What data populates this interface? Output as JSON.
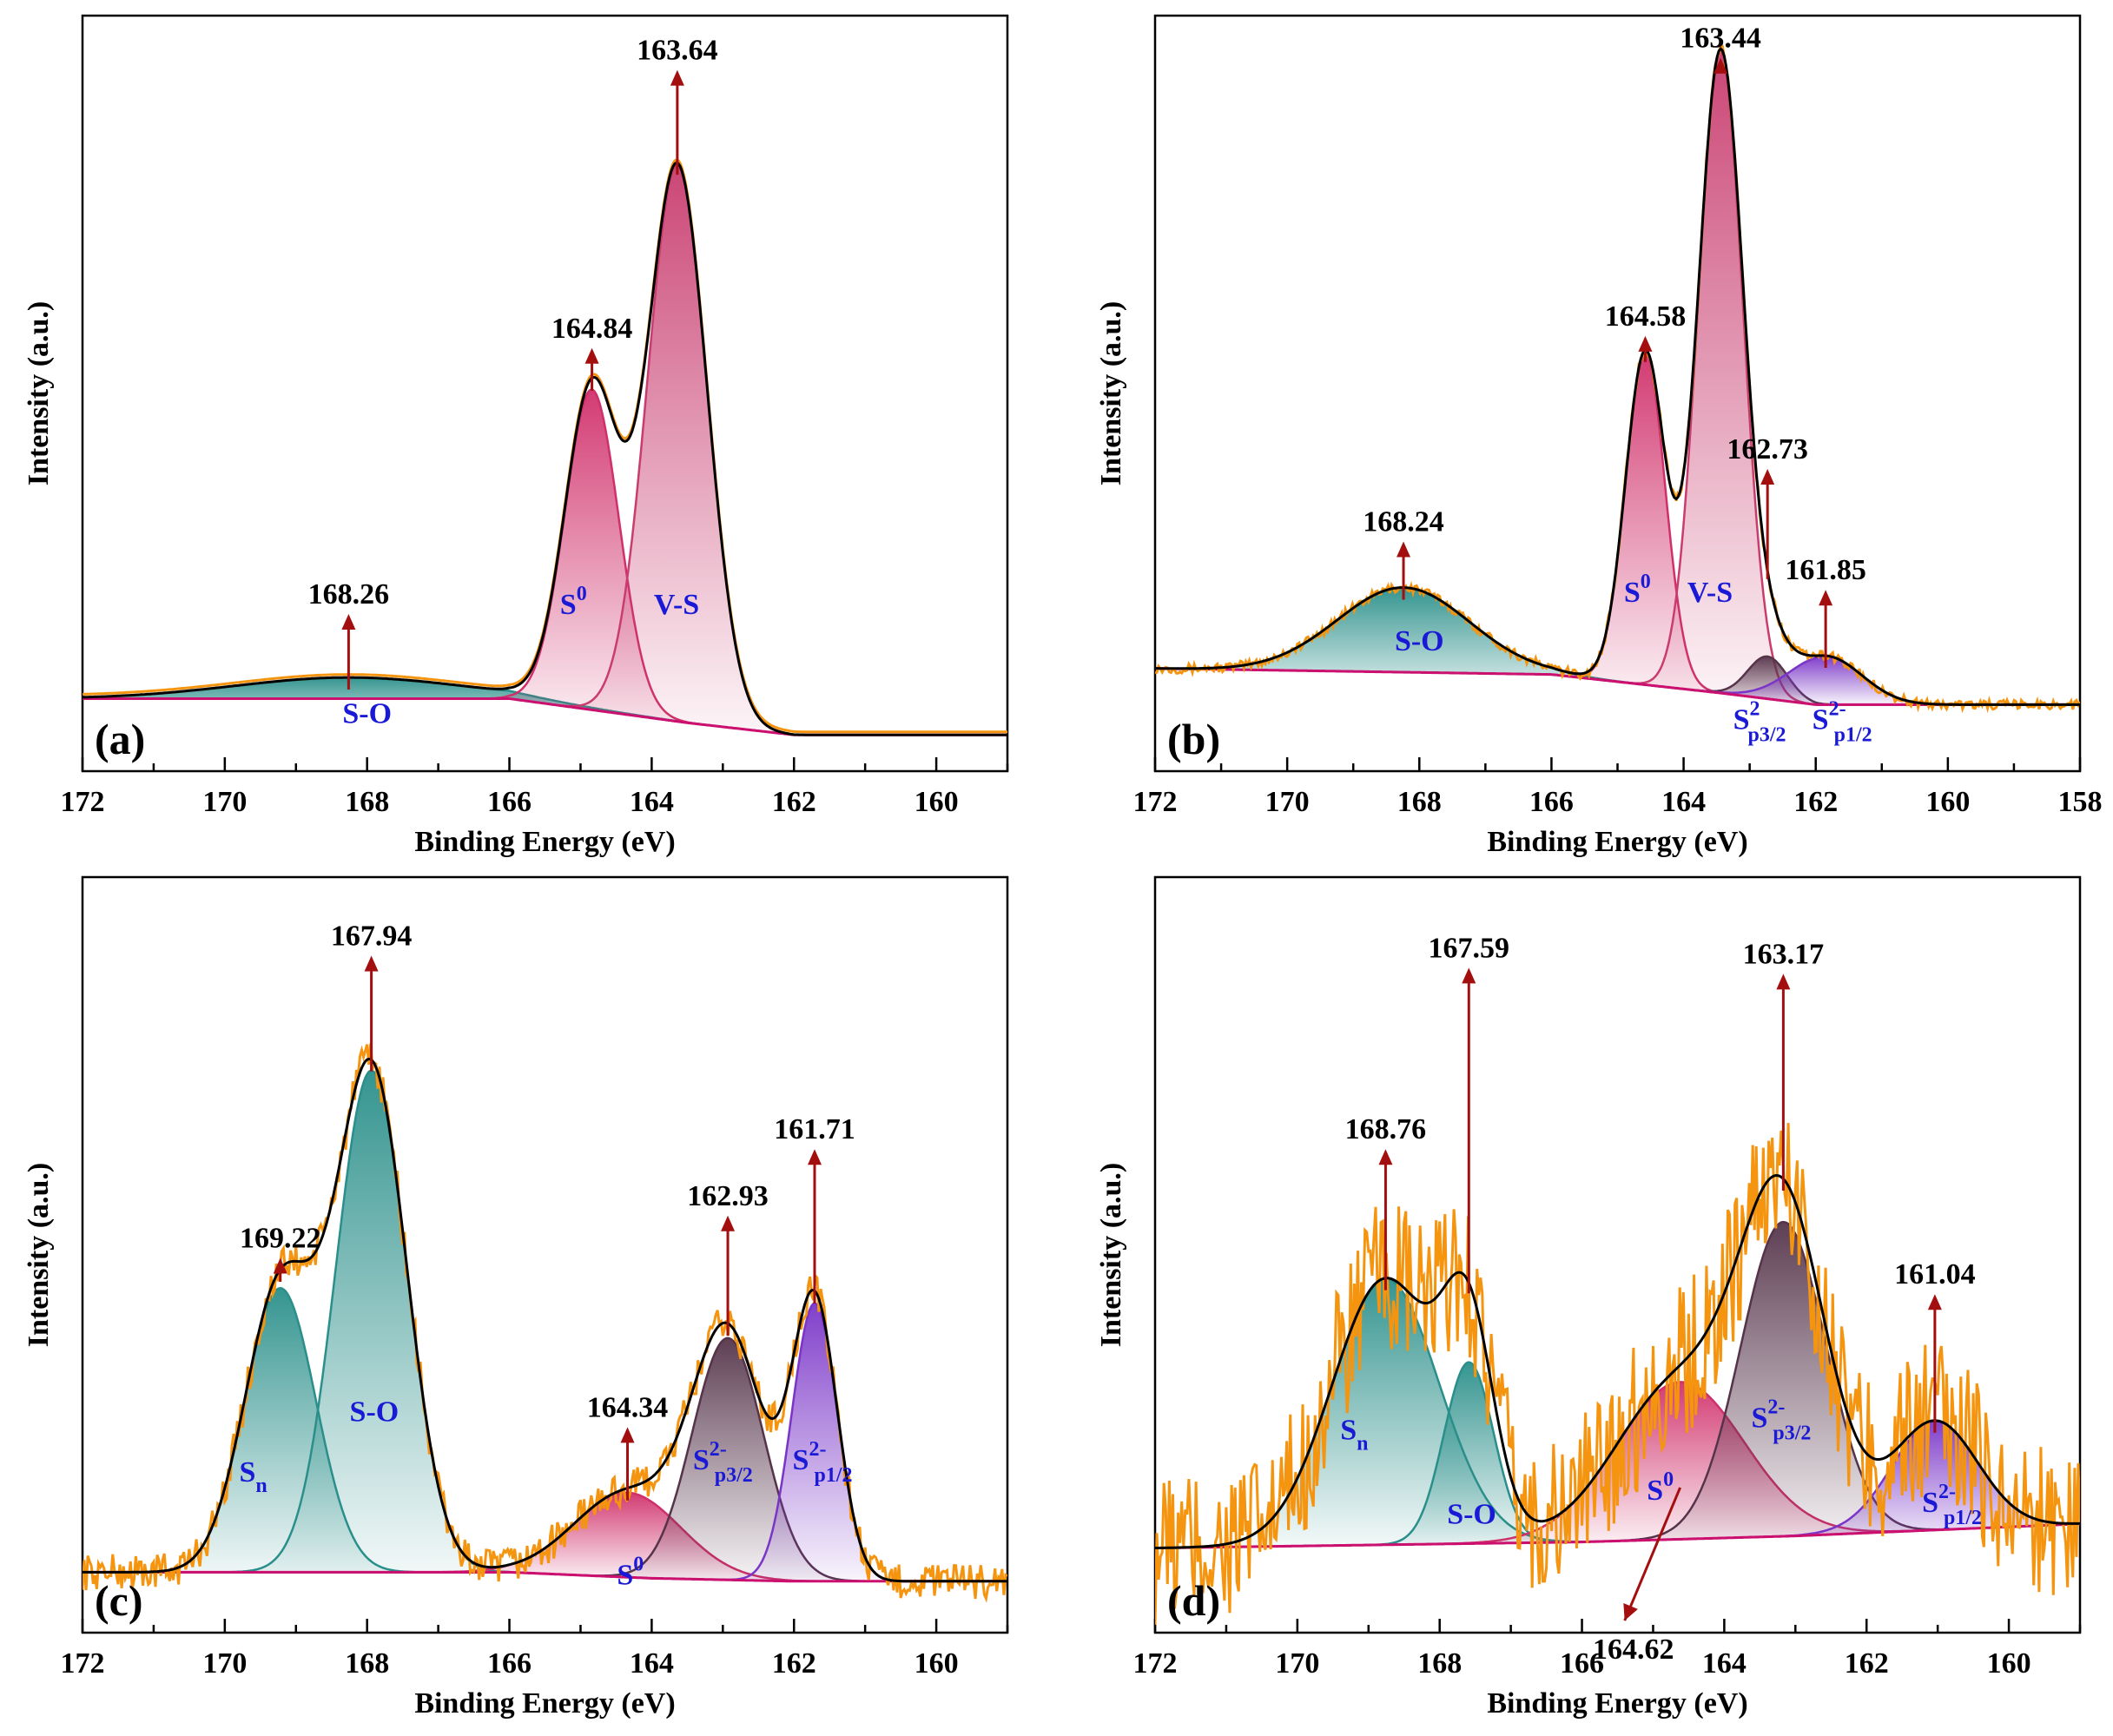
{
  "colors": {
    "raw": "#f5940f",
    "envelope": "#000000",
    "baseline": "#cc1070",
    "arrow": "#a30f0f",
    "label": "#1a1ad6",
    "so": "#2a8f8a",
    "s0": "#d0306a",
    "vs": "#c83c6e",
    "sp32": "#55344a",
    "sp12": "#7a35c8",
    "sn": "#2a8f8a"
  },
  "chart_data": [
    {
      "panel": "(a)",
      "type": "line",
      "xlabel": "Binding Energy (eV)",
      "ylabel": "Intensity (a.u.)",
      "xlim": [
        172,
        159
      ],
      "ylim": [
        0,
        1.25
      ],
      "xticks": [
        "172",
        "170",
        "168",
        "166",
        "164",
        "162",
        "160"
      ],
      "baseline": [
        [
          172,
          0.12
        ],
        [
          166,
          0.12
        ],
        [
          163.5,
          0.08
        ],
        [
          162,
          0.06
        ],
        [
          159,
          0.06
        ]
      ],
      "noise": 0.0,
      "components": [
        {
          "name": "S-O",
          "label_main": "S-O",
          "label_sup": "",
          "label_sub": "",
          "center": 168.26,
          "height": 0.035,
          "width": 1.6,
          "color": "so",
          "label_pos": [
            168.0,
            0.08
          ]
        },
        {
          "name": "S0",
          "label_main": "S",
          "label_sup": "0",
          "label_sub": "",
          "center": 164.84,
          "height": 0.53,
          "width": 0.38,
          "color": "s0",
          "label_pos": [
            165.1,
            0.26
          ]
        },
        {
          "name": "V-S",
          "label_main": "V-S",
          "label_sup": "",
          "label_sub": "",
          "center": 163.64,
          "height": 0.92,
          "width": 0.42,
          "color": "vs",
          "label_pos": [
            163.65,
            0.26
          ]
        }
      ],
      "peaks": [
        {
          "value": "163.64",
          "x": 163.64,
          "arrow_top": 1.16
        },
        {
          "value": "164.84",
          "x": 164.84,
          "arrow_top": 0.7
        },
        {
          "value": "168.26",
          "x": 168.26,
          "arrow_top": 0.26
        }
      ]
    },
    {
      "panel": "(b)",
      "type": "line",
      "xlabel": "Binding Energy (eV)",
      "ylabel": "Intensity (a.u.)",
      "xlim": [
        172,
        158
      ],
      "ylim": [
        0,
        1.25
      ],
      "xticks": [
        "172",
        "170",
        "168",
        "166",
        "164",
        "162",
        "160",
        "158"
      ],
      "baseline": [
        [
          172,
          0.17
        ],
        [
          166,
          0.16
        ],
        [
          163.5,
          0.13
        ],
        [
          162,
          0.11
        ],
        [
          158,
          0.11
        ]
      ],
      "noise": 0.008,
      "components": [
        {
          "name": "S-O",
          "label_main": "S-O",
          "label_sup": "",
          "label_sub": "",
          "center": 168.24,
          "height": 0.14,
          "width": 1.0,
          "color": "so",
          "label_pos": [
            168.0,
            0.2
          ]
        },
        {
          "name": "S0",
          "label_main": "S",
          "label_sup": "0",
          "label_sub": "",
          "center": 164.58,
          "height": 0.55,
          "width": 0.3,
          "color": "s0",
          "label_pos": [
            164.7,
            0.28
          ]
        },
        {
          "name": "V-S",
          "label_main": "V-S",
          "label_sup": "",
          "label_sub": "",
          "center": 163.44,
          "height": 1.06,
          "width": 0.34,
          "color": "vs",
          "label_pos": [
            163.6,
            0.28
          ]
        },
        {
          "name": "S2- p3/2",
          "label_main": "S",
          "label_sup": "2",
          "label_sub": "p3/2",
          "center": 162.73,
          "height": 0.07,
          "width": 0.3,
          "color": "sp32",
          "label_pos": [
            162.85,
            0.07
          ]
        },
        {
          "name": "S2- p1/2",
          "label_main": "S",
          "label_sup": "2-",
          "label_sub": "p1/2",
          "center": 161.85,
          "height": 0.08,
          "width": 0.55,
          "color": "sp12",
          "label_pos": [
            161.6,
            0.07
          ]
        }
      ],
      "peaks": [
        {
          "value": "163.44",
          "x": 163.44,
          "arrow_top": 1.18
        },
        {
          "value": "164.58",
          "x": 164.58,
          "arrow_top": 0.72
        },
        {
          "value": "168.24",
          "x": 168.24,
          "arrow_top": 0.38
        },
        {
          "value": "162.73",
          "x": 162.73,
          "arrow_top": 0.5
        },
        {
          "value": "161.85",
          "x": 161.85,
          "arrow_top": 0.3
        }
      ]
    },
    {
      "panel": "(c)",
      "type": "line",
      "xlabel": "Binding Energy (eV)",
      "ylabel": "Intensity (a.u.)",
      "xlim": [
        172,
        159
      ],
      "ylim": [
        0,
        1.25
      ],
      "xticks": [
        "172",
        "170",
        "168",
        "166",
        "164",
        "162",
        "160"
      ],
      "baseline": [
        [
          172,
          0.1
        ],
        [
          166,
          0.1
        ],
        [
          164,
          0.09
        ],
        [
          162,
          0.085
        ],
        [
          159,
          0.085
        ]
      ],
      "noise": 0.03,
      "components": [
        {
          "name": "Sn",
          "label_main": "S",
          "label_sup": "",
          "label_sub": "n",
          "center": 169.22,
          "height": 0.47,
          "width": 0.5,
          "color": "sn",
          "label_pos": [
            169.6,
            0.25
          ]
        },
        {
          "name": "S-O",
          "label_main": "S-O",
          "label_sup": "",
          "label_sub": "",
          "center": 167.94,
          "height": 0.83,
          "width": 0.5,
          "color": "so",
          "label_pos": [
            167.9,
            0.35
          ]
        },
        {
          "name": "S0",
          "label_main": "S",
          "label_sup": "0",
          "label_sub": "",
          "center": 164.34,
          "height": 0.14,
          "width": 0.75,
          "color": "s0",
          "label_pos": [
            164.3,
            0.08
          ]
        },
        {
          "name": "S2- p3/2",
          "label_main": "S",
          "label_sup": "2-",
          "label_sub": "p3/2",
          "center": 162.93,
          "height": 0.4,
          "width": 0.5,
          "color": "sp32",
          "label_pos": [
            163.0,
            0.27
          ]
        },
        {
          "name": "S2- p1/2",
          "label_main": "S",
          "label_sup": "2-",
          "label_sub": "p1/2",
          "center": 161.71,
          "height": 0.46,
          "width": 0.32,
          "color": "sp12",
          "label_pos": [
            161.6,
            0.27
          ]
        }
      ],
      "peaks": [
        {
          "value": "167.94",
          "x": 167.94,
          "arrow_top": 1.12
        },
        {
          "value": "169.22",
          "x": 169.22,
          "arrow_top": 0.62
        },
        {
          "value": "164.34",
          "x": 164.34,
          "arrow_top": 0.34
        },
        {
          "value": "162.93",
          "x": 162.93,
          "arrow_top": 0.69
        },
        {
          "value": "161.71",
          "x": 161.71,
          "arrow_top": 0.8
        }
      ]
    },
    {
      "panel": "(d)",
      "type": "line",
      "xlabel": "Binding Energy (eV)",
      "ylabel": "Intensity (a.u.)",
      "xlim": [
        172,
        159
      ],
      "ylim": [
        0,
        1.25
      ],
      "xticks": [
        "172",
        "170",
        "168",
        "166",
        "164",
        "162",
        "160"
      ],
      "baseline": [
        [
          172,
          0.14
        ],
        [
          166,
          0.15
        ],
        [
          163,
          0.16
        ],
        [
          161,
          0.17
        ],
        [
          159,
          0.18
        ]
      ],
      "noise": 0.13,
      "components": [
        {
          "name": "Sn",
          "label_main": "S",
          "label_sup": "",
          "label_sub": "n",
          "center": 168.76,
          "height": 0.44,
          "width": 0.75,
          "color": "sn",
          "label_pos": [
            169.2,
            0.32
          ]
        },
        {
          "name": "S-O",
          "label_main": "S-O",
          "label_sup": "",
          "label_sub": "",
          "center": 167.59,
          "height": 0.3,
          "width": 0.35,
          "color": "so",
          "label_pos": [
            167.55,
            0.18
          ]
        },
        {
          "name": "S0",
          "label_main": "S",
          "label_sup": "0",
          "label_sub": "",
          "center": 164.62,
          "height": 0.26,
          "width": 0.9,
          "color": "s0",
          "label_pos": [
            164.9,
            0.22
          ]
        },
        {
          "name": "S2- p3/2",
          "label_main": "S",
          "label_sup": "2-",
          "label_sub": "p3/2",
          "center": 163.17,
          "height": 0.52,
          "width": 0.6,
          "color": "sp32",
          "label_pos": [
            163.2,
            0.34
          ]
        },
        {
          "name": "S2- p1/2",
          "label_main": "S",
          "label_sup": "2-",
          "label_sub": "p1/2",
          "center": 161.04,
          "height": 0.18,
          "width": 0.6,
          "color": "sp12",
          "label_pos": [
            160.8,
            0.2
          ]
        }
      ],
      "peaks": [
        {
          "value": "167.59",
          "x": 167.59,
          "arrow_top": 1.1
        },
        {
          "value": "168.76",
          "x": 168.76,
          "arrow_top": 0.8
        },
        {
          "value": "163.17",
          "x": 163.17,
          "arrow_top": 1.09
        },
        {
          "value": "161.04",
          "x": 161.04,
          "arrow_top": 0.56
        },
        {
          "value": "164.62",
          "x": 164.62,
          "arrow_top": 0.24,
          "arrow_down_to": 165.4,
          "arrow_down_y": 0.02
        }
      ]
    }
  ]
}
